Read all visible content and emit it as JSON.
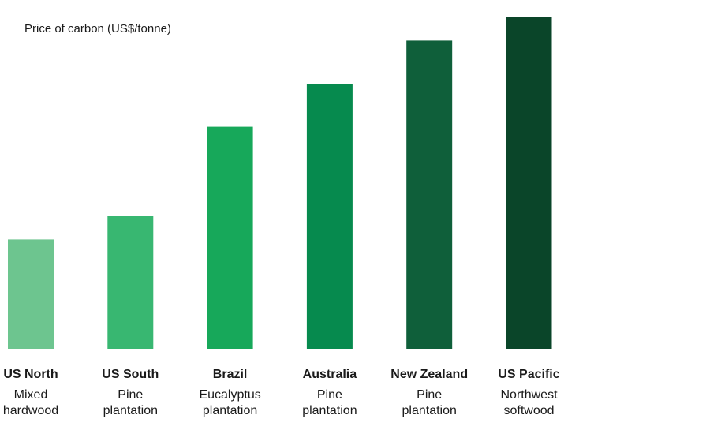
{
  "chart_data": {
    "type": "bar",
    "title": "",
    "ylabel": "Price of carbon (US$/tonne)",
    "xlabel": "",
    "grid": false,
    "legend": "none",
    "categories": [
      {
        "name": "US North",
        "sub": [
          "Mixed",
          "hardwood"
        ]
      },
      {
        "name": "US South",
        "sub": [
          "Pine",
          "plantation"
        ]
      },
      {
        "name": "Brazil",
        "sub": [
          "Eucalyptus",
          "plantation"
        ]
      },
      {
        "name": "Australia",
        "sub": [
          "Pine",
          "plantation"
        ]
      },
      {
        "name": "New Zealand",
        "sub": [
          "Pine",
          "plantation"
        ]
      },
      {
        "name": "US Pacific",
        "sub": [
          "Northwest",
          "softwood"
        ]
      }
    ],
    "values": [
      33,
      40,
      67,
      80,
      93,
      100
    ],
    "ylim": [
      0,
      100
    ],
    "colors": [
      "#6dc58f",
      "#38b771",
      "#17a85a",
      "#068a4e",
      "#0f5f3a",
      "#0a4529"
    ]
  }
}
